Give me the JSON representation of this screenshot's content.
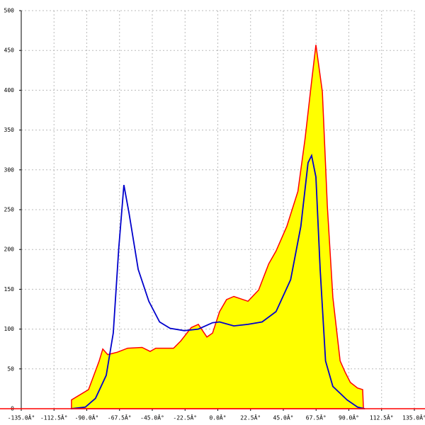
{
  "chart_data": {
    "type": "area",
    "xlim": [
      -135,
      135
    ],
    "xticks": [
      {
        "value": -135,
        "label": "-135.0Â°"
      },
      {
        "value": -112.5,
        "label": "-112.5Â°"
      },
      {
        "value": -90,
        "label": "-90.0Â°"
      },
      {
        "value": -67.5,
        "label": "-67.5Â°"
      },
      {
        "value": -45,
        "label": "-45.0Â°"
      },
      {
        "value": -22.5,
        "label": "-22.5Â°"
      },
      {
        "value": 0,
        "label": "0.0Â°"
      },
      {
        "value": 22.5,
        "label": "22.5Â°"
      },
      {
        "value": 45,
        "label": "45.0Â°"
      },
      {
        "value": 67.5,
        "label": "67.5Â°"
      },
      {
        "value": 90,
        "label": "90.0Â°"
      },
      {
        "value": 112.5,
        "label": "112.5Â°"
      },
      {
        "value": 135,
        "label": "135.0Â°"
      }
    ],
    "ylim": [
      0,
      500
    ],
    "yticks": [
      0,
      50,
      100,
      150,
      200,
      250,
      300,
      350,
      400,
      450,
      500
    ],
    "grid": true,
    "series": [
      {
        "color": "#ff0000",
        "fill": "#ffff00",
        "x": [
          -100.5,
          -100.5,
          -88.8,
          -81.5,
          -79,
          -75.6,
          -69,
          -62,
          -52,
          -46.5,
          -42.6,
          -30.4,
          -25.5,
          -18.2,
          -13.4,
          -7.5,
          -3.6,
          1.2,
          6,
          11,
          20.7,
          28,
          35,
          40,
          47.4,
          55,
          60,
          64.4,
          67.4,
          71.8,
          75.2,
          79,
          84,
          87.4,
          91,
          96,
          99.5,
          100
        ],
        "values": [
          0,
          11,
          24,
          60,
          75,
          68,
          71,
          76,
          77,
          72,
          76,
          76,
          85,
          102,
          106,
          90,
          95,
          122,
          137,
          141,
          135,
          149,
          182,
          198,
          229,
          273,
          340,
          411,
          457,
          398,
          255,
          140,
          60,
          46,
          33,
          26,
          24,
          0
        ]
      },
      {
        "color": "#0000cc",
        "x": [
          -101,
          -91,
          -84,
          -76.6,
          -71.8,
          -68,
          -64.5,
          -61,
          -54.7,
          -47.4,
          -40,
          -32.8,
          -23,
          -13.4,
          -3.6,
          1.2,
          11,
          20.7,
          30.4,
          40,
          50,
          57,
          62,
          64.4,
          67.4,
          70.3,
          74,
          79,
          88.8,
          96,
          101
        ],
        "values": [
          0,
          2,
          13,
          42,
          95,
          202,
          281,
          246,
          175,
          135,
          109,
          101,
          98,
          100,
          108,
          109,
          104,
          106,
          109,
          122,
          162,
          229,
          309,
          318,
          291,
          175,
          60,
          28,
          11,
          2,
          0
        ]
      }
    ]
  }
}
